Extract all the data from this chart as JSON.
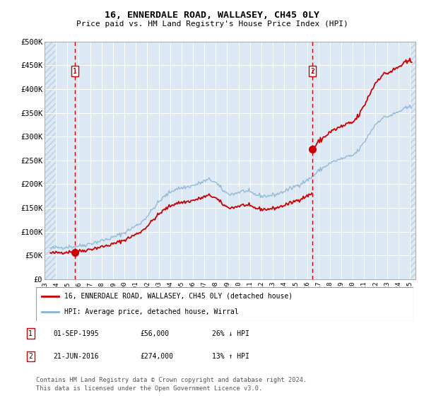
{
  "title": "16, ENNERDALE ROAD, WALLASEY, CH45 0LY",
  "subtitle": "Price paid vs. HM Land Registry's House Price Index (HPI)",
  "ylim": [
    0,
    500000
  ],
  "yticks": [
    0,
    50000,
    100000,
    150000,
    200000,
    250000,
    300000,
    350000,
    400000,
    450000,
    500000
  ],
  "ytick_labels": [
    "£0",
    "£50K",
    "£100K",
    "£150K",
    "£200K",
    "£250K",
    "£300K",
    "£350K",
    "£400K",
    "£450K",
    "£500K"
  ],
  "bg_color": "#dce9f5",
  "hatch_color": "#b8cfe0",
  "grid_color": "#ffffff",
  "hpi_color": "#8ab4d4",
  "sale_color": "#cc0000",
  "sale_points": [
    {
      "date": 1995.67,
      "price": 56000,
      "label": "1"
    },
    {
      "date": 2016.47,
      "price": 274000,
      "label": "2"
    }
  ],
  "vline_color": "#cc0000",
  "legend_entries": [
    "16, ENNERDALE ROAD, WALLASEY, CH45 0LY (detached house)",
    "HPI: Average price, detached house, Wirral"
  ],
  "table_data": [
    [
      "1",
      "01-SEP-1995",
      "£56,000",
      "26% ↓ HPI"
    ],
    [
      "2",
      "21-JUN-2016",
      "£274,000",
      "13% ↑ HPI"
    ]
  ],
  "footer": "Contains HM Land Registry data © Crown copyright and database right 2024.\nThis data is licensed under the Open Government Licence v3.0.",
  "xlim": [
    1993,
    2025.5
  ],
  "xtick_years": [
    1993,
    1994,
    1995,
    1996,
    1997,
    1998,
    1999,
    2000,
    2001,
    2002,
    2003,
    2004,
    2005,
    2006,
    2007,
    2008,
    2009,
    2010,
    2011,
    2012,
    2013,
    2014,
    2015,
    2016,
    2017,
    2018,
    2019,
    2020,
    2021,
    2022,
    2023,
    2024,
    2025
  ],
  "hpi_base_values": [
    [
      1993.5,
      65000
    ],
    [
      1994.0,
      66000
    ],
    [
      1994.5,
      67000
    ],
    [
      1995.0,
      68000
    ],
    [
      1995.5,
      68500
    ],
    [
      1996.0,
      70000
    ],
    [
      1996.5,
      72000
    ],
    [
      1997.0,
      75000
    ],
    [
      1997.5,
      78000
    ],
    [
      1998.0,
      81000
    ],
    [
      1998.5,
      84000
    ],
    [
      1999.0,
      88000
    ],
    [
      1999.5,
      93000
    ],
    [
      2000.0,
      98000
    ],
    [
      2000.5,
      105000
    ],
    [
      2001.0,
      112000
    ],
    [
      2001.5,
      120000
    ],
    [
      2002.0,
      133000
    ],
    [
      2002.5,
      148000
    ],
    [
      2003.0,
      162000
    ],
    [
      2003.5,
      174000
    ],
    [
      2004.0,
      183000
    ],
    [
      2004.5,
      190000
    ],
    [
      2005.0,
      192000
    ],
    [
      2005.5,
      194000
    ],
    [
      2006.0,
      197000
    ],
    [
      2006.5,
      201000
    ],
    [
      2007.0,
      206000
    ],
    [
      2007.5,
      210000
    ],
    [
      2008.0,
      203000
    ],
    [
      2008.5,
      190000
    ],
    [
      2009.0,
      180000
    ],
    [
      2009.5,
      179000
    ],
    [
      2010.0,
      183000
    ],
    [
      2010.5,
      186000
    ],
    [
      2011.0,
      182000
    ],
    [
      2011.5,
      178000
    ],
    [
      2012.0,
      175000
    ],
    [
      2012.5,
      175000
    ],
    [
      2013.0,
      177000
    ],
    [
      2013.5,
      180000
    ],
    [
      2014.0,
      185000
    ],
    [
      2014.5,
      190000
    ],
    [
      2015.0,
      196000
    ],
    [
      2015.5,
      202000
    ],
    [
      2016.0,
      208000
    ],
    [
      2016.5,
      216000
    ],
    [
      2017.0,
      228000
    ],
    [
      2017.5,
      236000
    ],
    [
      2018.0,
      244000
    ],
    [
      2018.5,
      249000
    ],
    [
      2019.0,
      253000
    ],
    [
      2019.5,
      257000
    ],
    [
      2020.0,
      260000
    ],
    [
      2020.5,
      271000
    ],
    [
      2021.0,
      288000
    ],
    [
      2021.5,
      308000
    ],
    [
      2022.0,
      326000
    ],
    [
      2022.5,
      338000
    ],
    [
      2023.0,
      342000
    ],
    [
      2023.5,
      346000
    ],
    [
      2024.0,
      352000
    ],
    [
      2024.5,
      358000
    ],
    [
      2025.0,
      362000
    ]
  ]
}
